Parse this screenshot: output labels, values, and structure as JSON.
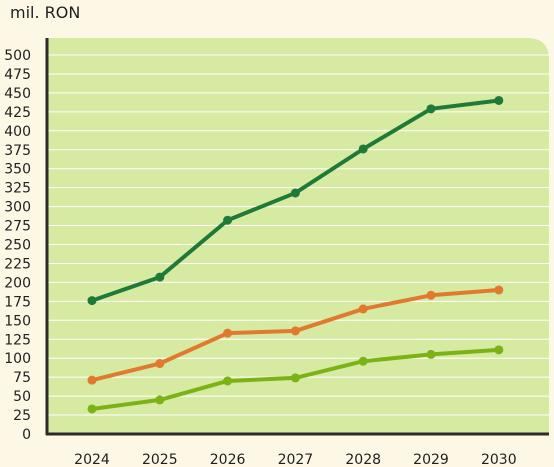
{
  "chart_data": {
    "type": "line",
    "title": "",
    "xlabel": "",
    "ylabel": "mil. RON",
    "x": [
      "2024",
      "2025",
      "2026",
      "2027",
      "2028",
      "2029",
      "2030"
    ],
    "ylim": [
      0,
      500
    ],
    "yticks": [
      0,
      25,
      50,
      75,
      100,
      125,
      150,
      175,
      200,
      225,
      250,
      275,
      300,
      325,
      350,
      375,
      400,
      425,
      450,
      475,
      500
    ],
    "grid": true,
    "legend": "none",
    "series": [
      {
        "color": "#1f7a3a",
        "values": [
          176,
          207,
          282,
          318,
          376,
          429,
          440
        ]
      },
      {
        "color": "#e07a2e",
        "values": [
          71,
          93,
          133,
          136,
          165,
          183,
          190
        ]
      },
      {
        "color": "#7bb317",
        "values": [
          33,
          45,
          70,
          74,
          96,
          105,
          111
        ]
      }
    ],
    "colors": {
      "plot_background": "#d6eaa2",
      "page_background": "#fdf8e6",
      "grid": "#ffffff",
      "axis": "#2b2b2b"
    }
  }
}
